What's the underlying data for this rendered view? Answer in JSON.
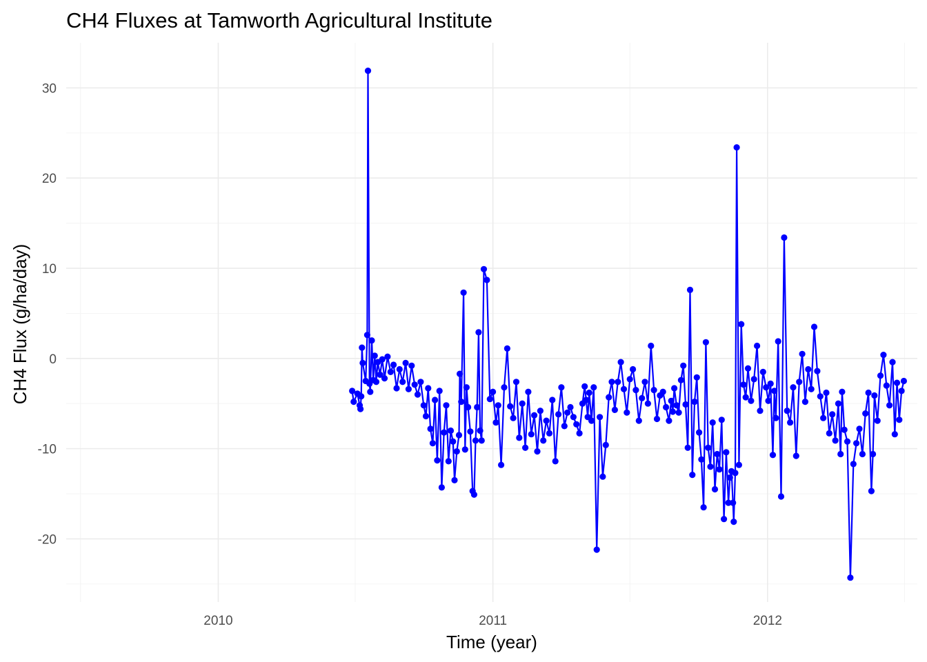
{
  "chart_data": {
    "type": "line",
    "title": "CH4 Fluxes at Tamworth Agricultural Institute",
    "xlabel": "Time (year)",
    "ylabel": "CH4 Flux (g/ha/day)",
    "xlim": [
      "2009-06-13",
      "2012-07-18"
    ],
    "ylim": [
      -27,
      35
    ],
    "x_ticks": [
      {
        "date": "2010-01-01",
        "label": "2010"
      },
      {
        "date": "2011-01-01",
        "label": "2011"
      },
      {
        "date": "2012-01-01",
        "label": "2012"
      }
    ],
    "x_minor_ticks": [
      "2009-07-02",
      "2010-07-02",
      "2011-07-02",
      "2012-07-01"
    ],
    "y_ticks": [
      -20,
      -10,
      0,
      10,
      20,
      30
    ],
    "y_minor_ticks": [
      -25,
      -15,
      -5,
      5,
      15,
      25
    ],
    "grid": true,
    "legend": "none",
    "colors": {
      "series": "#0000ff",
      "grid_major": "#ebebeb",
      "grid_minor": "#f3f3f3",
      "tick_text": "#4d4d4d"
    },
    "series": [
      {
        "x": [
          "2010-06-28",
          "2010-06-30",
          "2010-07-05",
          "2010-07-08",
          "2010-07-09",
          "2010-07-10",
          "2010-07-11",
          "2010-07-12",
          "2010-07-16",
          "2010-07-18",
          "2010-07-19",
          "2010-07-21",
          "2010-07-22",
          "2010-07-24",
          "2010-07-26",
          "2010-07-28",
          "2010-07-30",
          "2010-08-01",
          "2010-08-04",
          "2010-08-07",
          "2010-08-10",
          "2010-08-14",
          "2010-08-18",
          "2010-08-22",
          "2010-08-26",
          "2010-08-30",
          "2010-09-03",
          "2010-09-07",
          "2010-09-11",
          "2010-09-15",
          "2010-09-19",
          "2010-09-23",
          "2010-09-27",
          "2010-10-01",
          "2010-10-04",
          "2010-10-07",
          "2010-10-10",
          "2010-10-13",
          "2010-10-16",
          "2010-10-19",
          "2010-10-22",
          "2010-10-25",
          "2010-10-28",
          "2010-10-31",
          "2010-11-03",
          "2010-11-06",
          "2010-11-09",
          "2010-11-11",
          "2010-11-14",
          "2010-11-17",
          "2010-11-18",
          "2010-11-20",
          "2010-11-23",
          "2010-11-25",
          "2010-11-27",
          "2010-11-29",
          "2010-12-02",
          "2010-12-05",
          "2010-12-07",
          "2010-12-09",
          "2010-12-11",
          "2010-12-13",
          "2010-12-15",
          "2010-12-17",
          "2010-12-20",
          "2010-12-24",
          "2010-12-28",
          "2011-01-01",
          "2011-01-05",
          "2011-01-08",
          "2011-01-12",
          "2011-01-16",
          "2011-01-20",
          "2011-01-24",
          "2011-01-28",
          "2011-02-01",
          "2011-02-05",
          "2011-02-09",
          "2011-02-13",
          "2011-02-17",
          "2011-02-21",
          "2011-02-25",
          "2011-03-01",
          "2011-03-05",
          "2011-03-09",
          "2011-03-13",
          "2011-03-17",
          "2011-03-21",
          "2011-03-25",
          "2011-03-29",
          "2011-04-02",
          "2011-04-06",
          "2011-04-10",
          "2011-04-14",
          "2011-04-18",
          "2011-04-22",
          "2011-04-26",
          "2011-04-30",
          "2011-05-03",
          "2011-05-05",
          "2011-05-07",
          "2011-05-09",
          "2011-05-12",
          "2011-05-15",
          "2011-05-19",
          "2011-05-23",
          "2011-05-27",
          "2011-05-31",
          "2011-06-04",
          "2011-06-08",
          "2011-06-12",
          "2011-06-16",
          "2011-06-20",
          "2011-06-24",
          "2011-06-28",
          "2011-07-02",
          "2011-07-06",
          "2011-07-10",
          "2011-07-14",
          "2011-07-18",
          "2011-07-22",
          "2011-07-26",
          "2011-07-30",
          "2011-08-03",
          "2011-08-07",
          "2011-08-11",
          "2011-08-15",
          "2011-08-19",
          "2011-08-23",
          "2011-08-26",
          "2011-08-28",
          "2011-08-30",
          "2011-09-02",
          "2011-09-05",
          "2011-09-08",
          "2011-09-11",
          "2011-09-14",
          "2011-09-17",
          "2011-09-20",
          "2011-09-23",
          "2011-09-26",
          "2011-09-29",
          "2011-10-02",
          "2011-10-05",
          "2011-10-08",
          "2011-10-11",
          "2011-10-14",
          "2011-10-17",
          "2011-10-20",
          "2011-10-23",
          "2011-10-26",
          "2011-10-29",
          "2011-11-01",
          "2011-11-04",
          "2011-11-07",
          "2011-11-10",
          "2011-11-12",
          "2011-11-14",
          "2011-11-16",
          "2011-11-17",
          "2011-11-19",
          "2011-11-21",
          "2011-11-24",
          "2011-11-27",
          "2011-11-30",
          "2011-12-03",
          "2011-12-06",
          "2011-12-10",
          "2011-12-14",
          "2011-12-18",
          "2011-12-22",
          "2011-12-26",
          "2011-12-30",
          "2012-01-02",
          "2012-01-05",
          "2012-01-08",
          "2012-01-10",
          "2012-01-12",
          "2012-01-15",
          "2012-01-19",
          "2012-01-23",
          "2012-01-27",
          "2012-01-31",
          "2012-02-04",
          "2012-02-08",
          "2012-02-12",
          "2012-02-16",
          "2012-02-20",
          "2012-02-24",
          "2012-02-28",
          "2012-03-03",
          "2012-03-07",
          "2012-03-11",
          "2012-03-15",
          "2012-03-19",
          "2012-03-23",
          "2012-03-27",
          "2012-03-31",
          "2012-04-04",
          "2012-04-07",
          "2012-04-09",
          "2012-04-12",
          "2012-04-16",
          "2012-04-20",
          "2012-04-24",
          "2012-04-28",
          "2012-05-02",
          "2012-05-06",
          "2012-05-10",
          "2012-05-14",
          "2012-05-18",
          "2012-05-20",
          "2012-05-22",
          "2012-05-26",
          "2012-05-30",
          "2012-06-03",
          "2012-06-07",
          "2012-06-11",
          "2012-06-15",
          "2012-06-18",
          "2012-06-21",
          "2012-06-24",
          "2012-06-27",
          "2012-06-30"
        ],
        "y": [
          -3.6,
          -4.8,
          -3.9,
          -5.2,
          -5.6,
          -4.2,
          1.2,
          -0.5,
          -2.5,
          2.6,
          31.9,
          -2.8,
          -3.7,
          2.0,
          -2.4,
          0.3,
          -2.6,
          -0.4,
          -1.8,
          -0.1,
          -2.2,
          0.2,
          -1.5,
          -0.7,
          -3.3,
          -1.2,
          -2.6,
          -0.5,
          -3.4,
          -0.8,
          -2.9,
          -4.0,
          -2.6,
          -5.2,
          -6.4,
          -3.3,
          -7.8,
          -9.4,
          -4.6,
          -11.3,
          -3.6,
          -14.3,
          -8.2,
          -5.2,
          -11.4,
          -8.0,
          -9.2,
          -13.5,
          -10.3,
          -8.5,
          -1.7,
          -4.8,
          7.3,
          -10.1,
          -3.2,
          -5.4,
          -8.1,
          -14.7,
          -15.1,
          -9.1,
          -5.4,
          2.9,
          -8.0,
          -9.1,
          9.9,
          8.7,
          -4.5,
          -3.7,
          -7.1,
          -5.2,
          -11.8,
          -3.2,
          1.1,
          -5.3,
          -6.6,
          -2.6,
          -8.8,
          -5.0,
          -9.9,
          -3.7,
          -8.4,
          -6.3,
          -10.3,
          -5.8,
          -9.1,
          -6.9,
          -8.3,
          -4.6,
          -11.4,
          -6.2,
          -3.2,
          -7.5,
          -6.0,
          -5.4,
          -6.5,
          -7.3,
          -8.3,
          -5.0,
          -3.1,
          -4.6,
          -6.5,
          -3.8,
          -6.9,
          -3.2,
          -21.2,
          -6.5,
          -13.1,
          -9.6,
          -4.3,
          -2.6,
          -5.7,
          -2.6,
          -0.4,
          -3.4,
          -6.0,
          -2.3,
          -1.2,
          -3.5,
          -6.9,
          -4.4,
          -2.6,
          -5.0,
          1.4,
          -3.5,
          -6.7,
          -4.1,
          -3.7,
          -5.4,
          -6.9,
          -4.7,
          -5.9,
          -3.3,
          -5.2,
          -6.0,
          -2.4,
          -0.8,
          -5.1,
          -9.9,
          7.6,
          -12.9,
          -4.8,
          -2.1,
          -8.2,
          -11.2,
          -16.5,
          1.8,
          -9.9,
          -12.0,
          -7.1,
          -14.5,
          -10.6,
          -12.3,
          -6.8,
          -17.8,
          -10.4,
          -16.0,
          -13.2,
          -12.5,
          -16.0,
          -18.1,
          -12.7,
          23.4,
          -11.8,
          3.8,
          -2.9,
          -4.3,
          -1.1,
          -4.7,
          -2.3,
          1.4,
          -5.8,
          -1.5,
          -3.2,
          -4.7,
          -2.8,
          -10.7,
          -3.6,
          -6.6,
          1.9,
          -15.3,
          13.4,
          -5.8,
          -7.1,
          -3.2,
          -10.8,
          -2.6,
          0.5,
          -4.8,
          -1.2,
          -3.4,
          3.5,
          -1.4,
          -4.2,
          -6.6,
          -3.8,
          -8.3,
          -6.2,
          -9.1,
          -5.0,
          -10.6,
          -3.7,
          -7.9,
          -9.2,
          -24.3,
          -11.7,
          -9.4,
          -7.8,
          -10.6,
          -6.1,
          -3.8,
          -14.7,
          -10.6,
          -4.1,
          -6.9,
          -1.9,
          0.4,
          -3.0,
          -5.2,
          -0.4,
          -8.4,
          -2.7,
          -6.8,
          -3.6,
          -2.5
        ]
      }
    ]
  }
}
